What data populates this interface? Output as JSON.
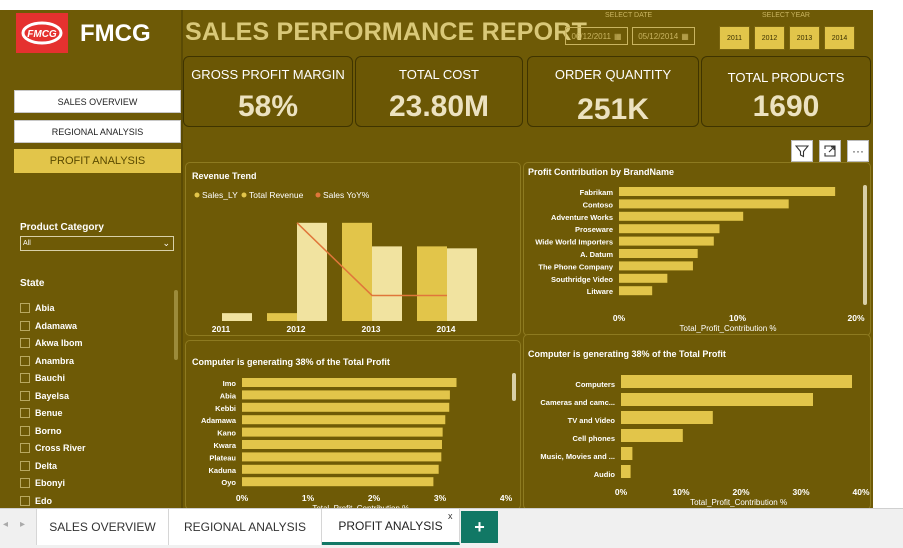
{
  "brand": {
    "name": "FMCG",
    "logo_text": "FMCG"
  },
  "report_title": "SALES PERFORMANCE REPORT",
  "date_filter": {
    "label": "SELECT DATE",
    "start": "06/12/2011",
    "end": "05/12/2014"
  },
  "year_filter": {
    "label": "SELECT YEAR",
    "years": [
      "2011",
      "2012",
      "2013",
      "2014"
    ]
  },
  "nav": {
    "sales_overview": "SALES OVERVIEW",
    "regional_analysis": "REGIONAL ANALYSIS",
    "profit_analysis": "PROFIT ANALYSIS"
  },
  "product_category": {
    "label": "Product Category",
    "value": "All"
  },
  "state_filter": {
    "label": "State",
    "items": [
      "Abia",
      "Adamawa",
      "Akwa Ibom",
      "Anambra",
      "Bauchi",
      "Bayelsa",
      "Benue",
      "Borno",
      "Cross River",
      "Delta",
      "Ebonyi",
      "Edo"
    ]
  },
  "kpis": [
    {
      "label": "GROSS PROFIT MARGIN",
      "value": "58%"
    },
    {
      "label": "TOTAL COST",
      "value": "23.80M"
    },
    {
      "label": "ORDER QUANTITY",
      "value": "251K"
    },
    {
      "label": "TOTAL PRODUCTS",
      "value": "1690"
    }
  ],
  "colors": {
    "background": "#6e5a06",
    "accent": "#e2c54a",
    "light_bar": "#f1e3a0",
    "line": "#e0763a",
    "tab_active": "#117865"
  },
  "icons": [
    "filter-icon",
    "expand-icon",
    "more-options-icon"
  ],
  "chart_data": [
    {
      "type": "bar",
      "title": "Revenue Trend",
      "legend": [
        "Sales_LY",
        "Total Revenue",
        "Sales YoY%"
      ],
      "legend_position": "top-left",
      "categories": [
        "2011",
        "2012",
        "2013",
        "2014"
      ],
      "series": [
        {
          "name": "Sales_LY",
          "values": [
            0,
            4,
            50,
            38
          ]
        },
        {
          "name": "Total Revenue",
          "values": [
            4,
            50,
            38,
            37
          ]
        },
        {
          "name": "Sales YoY%",
          "type": "line",
          "values": [
            null,
            50,
            13,
            13
          ]
        }
      ],
      "ylim": [
        0,
        55
      ],
      "grid": false
    },
    {
      "type": "bar",
      "orientation": "horizontal",
      "title": "Profit Contribution by BrandName",
      "xlabel": "Total_Profit_Contribution %",
      "categories": [
        "Fabrikam",
        "Contoso",
        "Adventure Works",
        "Proseware",
        "Wide World Importers",
        "A. Datum",
        "The Phone Company",
        "Southridge Video",
        "Litware"
      ],
      "values": [
        22.8,
        17.9,
        13.1,
        10.6,
        10.0,
        8.3,
        7.8,
        5.1,
        3.5
      ],
      "ticks": [
        "0%",
        "10%",
        "20%"
      ],
      "xlim": [
        0,
        25
      ]
    },
    {
      "type": "bar",
      "orientation": "horizontal",
      "title": "Computer is generating 38% of the Total Profit",
      "xlabel": "Total_Profit_Contribution %",
      "categories": [
        "Imo",
        "Abia",
        "Kebbi",
        "Adamawa",
        "Kano",
        "Kwara",
        "Plateau",
        "Kaduna",
        "Oyo"
      ],
      "values": [
        3.25,
        3.15,
        3.14,
        3.08,
        3.04,
        3.03,
        3.02,
        2.98,
        2.9
      ],
      "ticks": [
        "0%",
        "1%",
        "2%",
        "3%",
        "4%"
      ],
      "xlim": [
        0,
        4
      ]
    },
    {
      "type": "bar",
      "orientation": "horizontal",
      "title": "Computer is generating 38% of the Total Profit",
      "xlabel": "Total_Profit_Contribution %",
      "categories": [
        "Computers",
        "Cameras and camc...",
        "TV and Video",
        "Cell phones",
        "Music, Movies and ...",
        "Audio"
      ],
      "values": [
        38.5,
        32.0,
        15.3,
        10.3,
        1.9,
        1.6
      ],
      "ticks": [
        "0%",
        "10%",
        "20%",
        "30%",
        "40%"
      ],
      "xlim": [
        0,
        40
      ]
    }
  ],
  "tabs": [
    "SALES OVERVIEW",
    "REGIONAL ANALYSIS",
    "PROFIT ANALYSIS"
  ],
  "tab_close": "x",
  "tab_add": "+"
}
